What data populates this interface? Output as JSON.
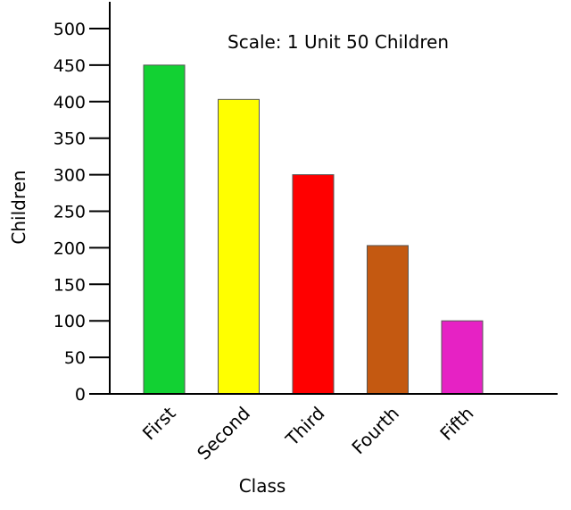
{
  "chart_data": {
    "type": "bar",
    "categories": [
      "First",
      "Second",
      "Third",
      "Fourth",
      "Fifth"
    ],
    "values": [
      450,
      403,
      300,
      203,
      100
    ],
    "colors": [
      "#12D133",
      "#FFFF00",
      "#FF0000",
      "#C45911",
      "#E622C4"
    ],
    "title": "",
    "xlabel": "Class",
    "ylabel": "Children",
    "annotation": "Scale: 1 Unit 50 Children",
    "ylim": [
      0,
      500
    ],
    "yticks": [
      0,
      50,
      100,
      150,
      200,
      250,
      300,
      350,
      400,
      450,
      500
    ],
    "grid": false
  }
}
